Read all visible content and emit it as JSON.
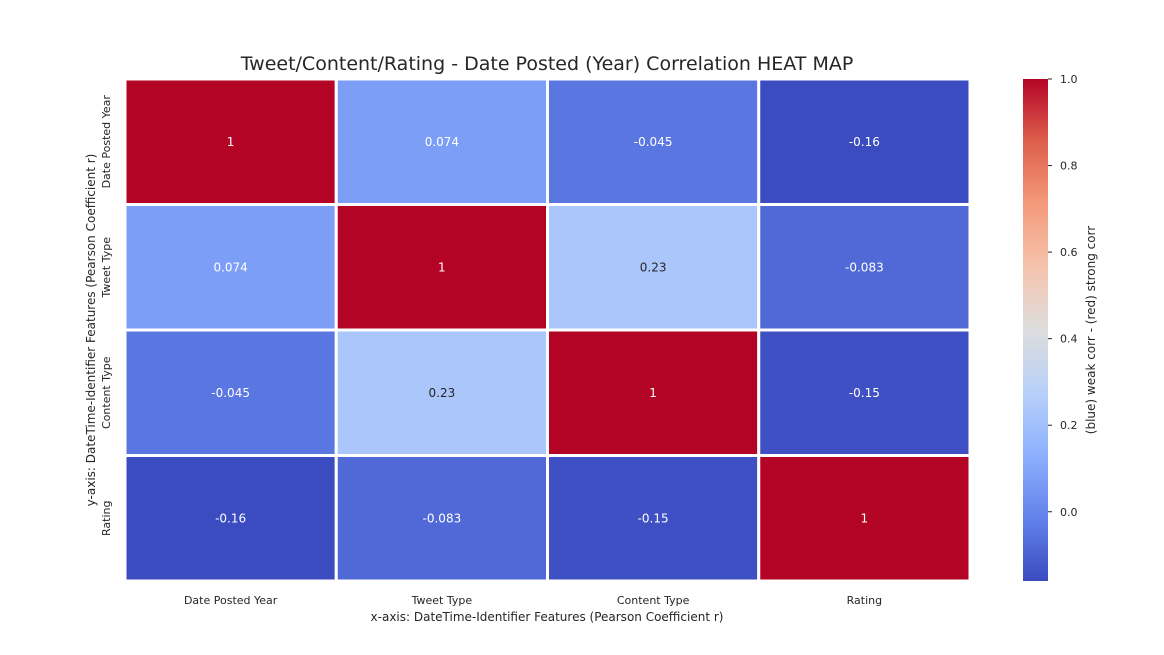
{
  "chart_data": {
    "type": "heatmap",
    "title": "Tweet/Content/Rating - Date Posted (Year) Correlation HEAT MAP",
    "xlabel": "x-axis: DateTime-Identifier Features (Pearson Coefficient r)",
    "ylabel": "y-axis: DateTime-Identifier Features (Pearson Coefficient r)",
    "x_categories": [
      "Date Posted Year",
      "Tweet Type",
      "Content Type",
      "Rating"
    ],
    "y_categories": [
      "Date Posted Year",
      "Tweet Type",
      "Content Type",
      "Rating"
    ],
    "values": [
      [
        1,
        0.074,
        -0.045,
        -0.16
      ],
      [
        0.074,
        1,
        0.23,
        -0.083
      ],
      [
        -0.045,
        0.23,
        1,
        -0.15
      ],
      [
        -0.16,
        -0.083,
        -0.15,
        1
      ]
    ],
    "annotations": [
      [
        "1",
        "0.074",
        "-0.045",
        "-0.16"
      ],
      [
        "0.074",
        "1",
        "0.23",
        "-0.083"
      ],
      [
        "-0.045",
        "0.23",
        "1",
        "-0.15"
      ],
      [
        "-0.16",
        "-0.083",
        "-0.15",
        "1"
      ]
    ],
    "colormap": "coolwarm",
    "colorbar": {
      "label": "(blue) weak corr - (red) strong corr",
      "range": [
        -0.16,
        1.0
      ],
      "ticks": [
        0.0,
        0.2,
        0.4,
        0.6,
        0.8,
        1.0
      ],
      "tick_labels": [
        "0.0",
        "0.2",
        "0.4",
        "0.6",
        "0.8",
        "1.0"
      ],
      "low_color": "#3b4cc0",
      "mid_color": "#dddddd",
      "high_color": "#b40426"
    },
    "cell_border_color": "#ffffff",
    "grid": false,
    "legend": "right"
  }
}
